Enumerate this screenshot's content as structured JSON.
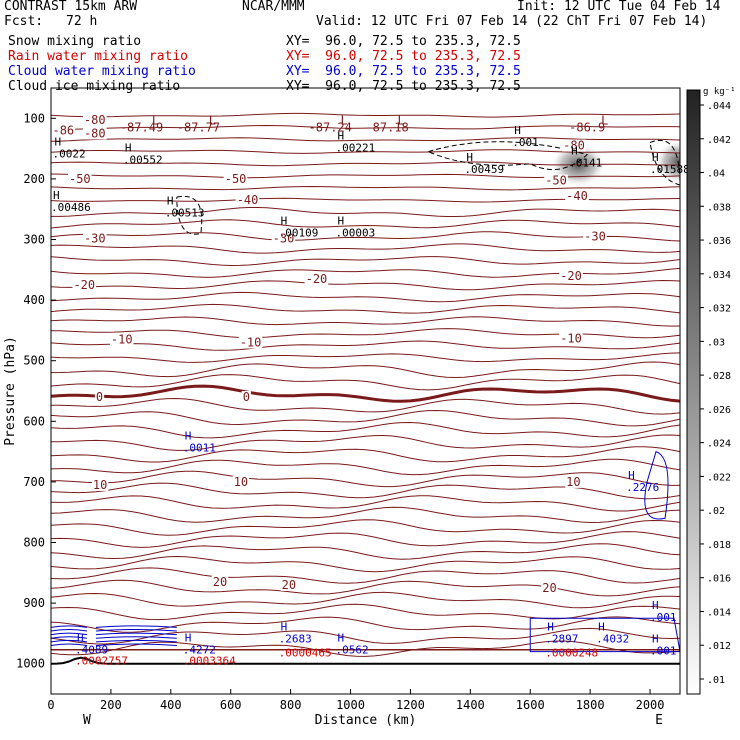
{
  "header": {
    "model": "CONTRAST 15km ARW",
    "center": "NCAR/MMM",
    "init": "Init: 12 UTC Tue 04 Feb 14",
    "fcst_label": "Fcst:",
    "fcst_value": "72 h",
    "valid": "Valid: 12 UTC Fri 07 Feb 14 (22 ChT Fri 07 Feb 14)",
    "fields": [
      {
        "name": "Snow mixing ratio",
        "xy": "XY=  96.0, 72.5 to 235.3, 72.5",
        "color": "#000000"
      },
      {
        "name": "Rain water mixing ratio",
        "xy": "XY=  96.0, 72.5 to 235.3, 72.5",
        "color": "#d40000"
      },
      {
        "name": "Cloud water mixing ratio",
        "xy": "XY=  96.0, 72.5 to 235.3, 72.5",
        "color": "#0000cc"
      },
      {
        "name": "Cloud ice mixing ratio",
        "xy": "XY=  96.0, 72.5 to 235.3, 72.5",
        "color": "#000000"
      }
    ]
  },
  "chart_data": {
    "type": "contour-cross-section",
    "xlabel": "Distance (km)",
    "ylabel": "Pressure (hPa)",
    "xlim": [
      0,
      2100
    ],
    "ylim_pressure": [
      1050,
      50
    ],
    "x_ticks": [
      0,
      200,
      400,
      600,
      800,
      1000,
      1200,
      1400,
      1600,
      1800,
      2000
    ],
    "y_ticks": [
      100,
      200,
      300,
      400,
      500,
      600,
      700,
      800,
      900,
      1000
    ],
    "x_end_labels": {
      "left": "W",
      "right": "E"
    },
    "colorbar": {
      "unit": "g kg⁻¹",
      "ticks": [
        ".01",
        ".012",
        ".014",
        ".016",
        ".018",
        ".02",
        ".022",
        ".024",
        ".026",
        ".028",
        ".03",
        ".032",
        ".034",
        ".036",
        ".038",
        ".04",
        ".042",
        ".044"
      ]
    },
    "temperature_labels": [
      {
        "text": "-80",
        "x": 110,
        "p": 103
      },
      {
        "text": "-86",
        "x": 5,
        "p": 120
      },
      {
        "text": "-80",
        "x": 110,
        "p": 125
      },
      {
        "text": "-80",
        "x": 1710,
        "p": 145
      },
      {
        "text": "-50",
        "x": 60,
        "p": 200
      },
      {
        "text": "-50",
        "x": 580,
        "p": 200
      },
      {
        "text": "-50",
        "x": 1650,
        "p": 203
      },
      {
        "text": "-40",
        "x": 620,
        "p": 235
      },
      {
        "text": "-40",
        "x": 1720,
        "p": 228
      },
      {
        "text": "-30",
        "x": 110,
        "p": 298
      },
      {
        "text": "-30",
        "x": 740,
        "p": 298
      },
      {
        "text": "-30",
        "x": 1780,
        "p": 295
      },
      {
        "text": "-20",
        "x": 75,
        "p": 375
      },
      {
        "text": "-20",
        "x": 850,
        "p": 365
      },
      {
        "text": "-20",
        "x": 1700,
        "p": 360
      },
      {
        "text": "-10",
        "x": 200,
        "p": 465
      },
      {
        "text": "-10",
        "x": 630,
        "p": 470
      },
      {
        "text": "-10",
        "x": 1700,
        "p": 463
      },
      {
        "text": "0",
        "x": 150,
        "p": 560
      },
      {
        "text": "0",
        "x": 640,
        "p": 560
      },
      {
        "text": "10",
        "x": 140,
        "p": 705
      },
      {
        "text": "10",
        "x": 610,
        "p": 700
      },
      {
        "text": "10",
        "x": 1720,
        "p": 700
      },
      {
        "text": "20",
        "x": 540,
        "p": 865
      },
      {
        "text": "20",
        "x": 770,
        "p": 870
      },
      {
        "text": "20",
        "x": 1640,
        "p": 875
      }
    ],
    "lows": [
      {
        "label": "L",
        "value": "-87.49",
        "x": 330
      },
      {
        "label": "L",
        "value": "-87.77",
        "x": 520
      },
      {
        "label": "L",
        "value": "-87.24",
        "x": 960
      },
      {
        "label": "L",
        "value": "-87.18",
        "x": 1150
      },
      {
        "label": "L",
        "value": "-86.9",
        "x": 1830
      }
    ],
    "snow_highs": [
      {
        "value": ".0022",
        "x": 5,
        "p": 155
      },
      {
        "value": ".00552",
        "x": 240,
        "p": 165
      },
      {
        "value": ".00221",
        "x": 950,
        "p": 145
      },
      {
        "value": ".00459",
        "x": 1380,
        "p": 180
      },
      {
        "value": ".0141",
        "x": 1730,
        "p": 170
      },
      {
        "value": ".01588",
        "x": 2000,
        "p": 180
      },
      {
        "value": ".00486",
        "x": 0,
        "p": 243
      },
      {
        "value": ".00513",
        "x": 380,
        "p": 252
      },
      {
        "value": ".00109",
        "x": 760,
        "p": 285
      },
      {
        "value": ".00003",
        "x": 950,
        "p": 285
      },
      {
        "value": ".001",
        "x": 1540,
        "p": 136
      }
    ],
    "cloud_water_highs": [
      {
        "value": ".0011",
        "x": 440,
        "p": 640
      },
      {
        "value": ".2276",
        "x": 1920,
        "p": 705
      },
      {
        "value": ".4089",
        "x": 80,
        "p": 973
      },
      {
        "value": ".4272",
        "x": 440,
        "p": 973
      },
      {
        "value": ".2683",
        "x": 760,
        "p": 955
      },
      {
        "value": ".0562",
        "x": 950,
        "p": 973
      },
      {
        "value": ".2897",
        "x": 1650,
        "p": 955
      },
      {
        "value": ".4032",
        "x": 1820,
        "p": 955
      },
      {
        "value": ".001",
        "x": 2000,
        "p": 920
      },
      {
        "value": ".001",
        "x": 2000,
        "p": 975
      }
    ],
    "rain_highs": [
      {
        "value": ".0002757",
        "x": 80,
        "p": 988
      },
      {
        "value": ".0003364",
        "x": 440,
        "p": 988
      },
      {
        "value": ".0000465",
        "x": 760,
        "p": 975
      },
      {
        "value": ".0000248",
        "x": 1650,
        "p": 975
      }
    ]
  }
}
